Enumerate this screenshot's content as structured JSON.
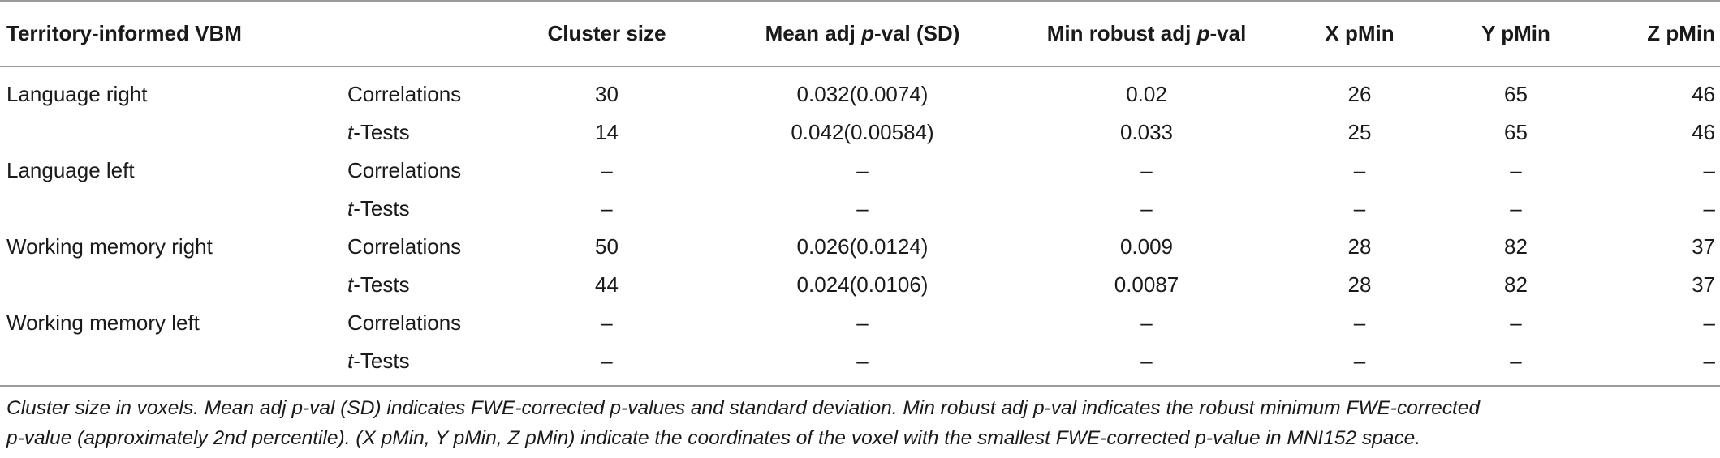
{
  "table": {
    "headers": {
      "group": "Territory-informed VBM",
      "analysis": "",
      "cluster_size": "Cluster size",
      "mean_adj_prefix": "Mean adj ",
      "mean_adj_p": "p",
      "mean_adj_suffix": "-val (SD)",
      "min_robust_prefix": "Min robust adj ",
      "min_robust_p": "p",
      "min_robust_suffix": "-val",
      "x_pmin": "X pMin",
      "y_pmin": "Y pMin",
      "z_pmin": "Z pMin"
    },
    "rows": [
      {
        "group": "Language right",
        "analysis": "Correlations",
        "analysis_prefix": "",
        "cluster_size": "30",
        "mean_adj": "0.032(0.0074)",
        "min_robust": "0.02",
        "x": "26",
        "y": "65",
        "z": "46"
      },
      {
        "group": "",
        "analysis": "-Tests",
        "analysis_prefix": "t",
        "cluster_size": "14",
        "mean_adj": "0.042(0.00584)",
        "min_robust": "0.033",
        "x": "25",
        "y": "65",
        "z": "46"
      },
      {
        "group": "Language left",
        "analysis": "Correlations",
        "analysis_prefix": "",
        "cluster_size": "–",
        "mean_adj": "–",
        "min_robust": "–",
        "x": "–",
        "y": "–",
        "z": "–"
      },
      {
        "group": "",
        "analysis": "-Tests",
        "analysis_prefix": "t",
        "cluster_size": "–",
        "mean_adj": "–",
        "min_robust": "–",
        "x": "–",
        "y": "–",
        "z": "–"
      },
      {
        "group": "Working memory right",
        "analysis": "Correlations",
        "analysis_prefix": "",
        "cluster_size": "50",
        "mean_adj": "0.026(0.0124)",
        "min_robust": "0.009",
        "x": "28",
        "y": "82",
        "z": "37"
      },
      {
        "group": "",
        "analysis": "-Tests",
        "analysis_prefix": "t",
        "cluster_size": "44",
        "mean_adj": "0.024(0.0106)",
        "min_robust": "0.0087",
        "x": "28",
        "y": "82",
        "z": "37"
      },
      {
        "group": "Working memory left",
        "analysis": "Correlations",
        "analysis_prefix": "",
        "cluster_size": "–",
        "mean_adj": "–",
        "min_robust": "–",
        "x": "–",
        "y": "–",
        "z": "–"
      },
      {
        "group": "",
        "analysis": "-Tests",
        "analysis_prefix": "t",
        "cluster_size": "–",
        "mean_adj": "–",
        "min_robust": "–",
        "x": "–",
        "y": "–",
        "z": "–"
      }
    ]
  },
  "footnote": {
    "line1": "Cluster size in voxels. Mean adj p-val (SD) indicates FWE-corrected p-values and standard deviation. Min robust adj p-val indicates the robust minimum FWE-corrected",
    "line2": "p-value (approximately 2nd percentile). (X pMin, Y pMin, Z pMin) indicate the coordinates of the voxel with the smallest FWE-corrected p-value in MNI152 space."
  }
}
